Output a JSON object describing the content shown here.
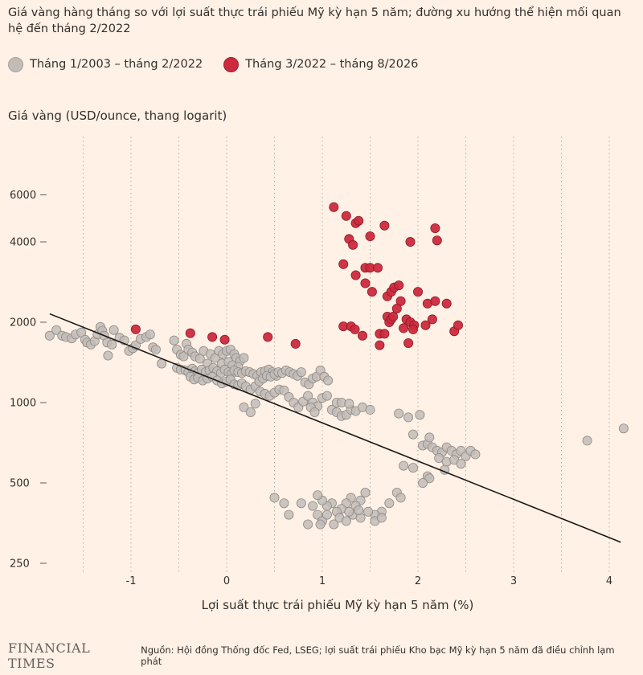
{
  "title": "Giá vàng hàng tháng so với lợi suất thực trái phiếu Mỹ kỳ hạn 5 năm; đường xu hướng thể hiện mối quan hệ đến tháng 2/2022",
  "legend": [
    {
      "label": "Tháng 1/2003 – tháng 2/2022",
      "color": "#c2bcb8"
    },
    {
      "label": "Tháng 3/2022 – tháng 8/2026",
      "color": "#cc2a3d"
    }
  ],
  "footer": {
    "brand": "FINANCIAL TIMES",
    "source": "Nguồn: Hội đồng Thống đốc Fed, LSEG; lợi suất trái phiếu Kho bạc Mỹ kỳ hạn 5 năm đã điều chỉnh lạm phát"
  },
  "chart_data": {
    "type": "scatter",
    "title": "Giá vàng hàng tháng so với lợi suất thực trái phiếu Mỹ kỳ hạn 5 năm; đường xu hướng thể hiện mối quan hệ đến tháng 2/2022",
    "xlabel": "Lợi suất thực trái phiếu Mỹ kỳ hạn 5 năm (%)",
    "ylabel": "Giá vàng (USD/ounce, thang logarit)",
    "x_ticks": [
      -1,
      0,
      1,
      2,
      3,
      4
    ],
    "x_tick_labels": [
      "-1",
      "0",
      "1",
      "2",
      "3",
      "4"
    ],
    "y_ticks": [
      250,
      500,
      1000,
      2000,
      4000,
      6000
    ],
    "y_tick_labels": [
      "250",
      "500",
      "1000",
      "2000",
      "4000",
      "6000"
    ],
    "y_scale": "log",
    "xlim": [
      -1.9,
      4.25
    ],
    "ylim": [
      240,
      9000
    ],
    "grid": "vertical dotted",
    "legend_position": "top-left",
    "trendline": {
      "x": [
        -1.85,
        4.12
      ],
      "y": [
        2150,
        300
      ]
    },
    "series": [
      {
        "name": "Tháng 1/2003 – tháng 2/2022",
        "color": "#c2bcb8",
        "points": [
          [
            -1.85,
            1780
          ],
          [
            -1.78,
            1870
          ],
          [
            -1.72,
            1780
          ],
          [
            -1.68,
            1760
          ],
          [
            -1.62,
            1740
          ],
          [
            -1.58,
            1800
          ],
          [
            -1.52,
            1830
          ],
          [
            -1.48,
            1720
          ],
          [
            -1.46,
            1680
          ],
          [
            -1.42,
            1650
          ],
          [
            -1.38,
            1700
          ],
          [
            -1.35,
            1800
          ],
          [
            -1.32,
            1920
          ],
          [
            -1.3,
            1860
          ],
          [
            -1.28,
            1780
          ],
          [
            -1.25,
            1680
          ],
          [
            -1.24,
            1500
          ],
          [
            -1.2,
            1650
          ],
          [
            -1.18,
            1870
          ],
          [
            -1.12,
            1750
          ],
          [
            -1.07,
            1710
          ],
          [
            -1.02,
            1560
          ],
          [
            -0.98,
            1600
          ],
          [
            -0.95,
            1640
          ],
          [
            -0.9,
            1730
          ],
          [
            -0.84,
            1760
          ],
          [
            -0.8,
            1800
          ],
          [
            -0.77,
            1610
          ],
          [
            -0.74,
            1580
          ],
          [
            -0.68,
            1400
          ],
          [
            -0.55,
            1710
          ],
          [
            -0.52,
            1580
          ],
          [
            -0.48,
            1510
          ],
          [
            -0.45,
            1490
          ],
          [
            -0.42,
            1660
          ],
          [
            -0.4,
            1580
          ],
          [
            -0.36,
            1540
          ],
          [
            -0.33,
            1490
          ],
          [
            -0.28,
            1460
          ],
          [
            -0.24,
            1560
          ],
          [
            -0.2,
            1400
          ],
          [
            -0.17,
            1520
          ],
          [
            -0.12,
            1470
          ],
          [
            -0.08,
            1560
          ],
          [
            -0.04,
            1520
          ],
          [
            0.0,
            1560
          ],
          [
            0.04,
            1580
          ],
          [
            0.08,
            1520
          ],
          [
            0.1,
            1470
          ],
          [
            0.14,
            1430
          ],
          [
            0.18,
            1470
          ],
          [
            -0.05,
            1400
          ],
          [
            0.02,
            1420
          ],
          [
            0.06,
            1380
          ],
          [
            0.12,
            1360
          ],
          [
            -0.52,
            1350
          ],
          [
            -0.48,
            1330
          ],
          [
            -0.43,
            1320
          ],
          [
            -0.4,
            1300
          ],
          [
            -0.36,
            1340
          ],
          [
            -0.33,
            1310
          ],
          [
            -0.3,
            1290
          ],
          [
            -0.26,
            1330
          ],
          [
            -0.22,
            1300
          ],
          [
            -0.18,
            1320
          ],
          [
            -0.14,
            1350
          ],
          [
            -0.1,
            1310
          ],
          [
            -0.06,
            1290
          ],
          [
            -0.02,
            1330
          ],
          [
            0.02,
            1300
          ],
          [
            0.05,
            1280
          ],
          [
            0.08,
            1320
          ],
          [
            0.12,
            1300
          ],
          [
            0.16,
            1290
          ],
          [
            0.2,
            1310
          ],
          [
            0.24,
            1300
          ],
          [
            0.28,
            1280
          ],
          [
            0.32,
            1260
          ],
          [
            0.36,
            1300
          ],
          [
            0.4,
            1310
          ],
          [
            0.44,
            1330
          ],
          [
            0.48,
            1300
          ],
          [
            0.52,
            1260
          ],
          [
            -0.38,
            1250
          ],
          [
            -0.34,
            1220
          ],
          [
            -0.3,
            1240
          ],
          [
            -0.25,
            1210
          ],
          [
            -0.2,
            1230
          ],
          [
            -0.15,
            1250
          ],
          [
            -0.1,
            1210
          ],
          [
            -0.05,
            1180
          ],
          [
            0.0,
            1200
          ],
          [
            0.04,
            1220
          ],
          [
            0.08,
            1170
          ],
          [
            0.12,
            1160
          ],
          [
            0.16,
            1180
          ],
          [
            0.2,
            1150
          ],
          [
            0.25,
            1120
          ],
          [
            0.3,
            1150
          ],
          [
            0.34,
            1200
          ],
          [
            0.38,
            1230
          ],
          [
            0.42,
            1260
          ],
          [
            0.46,
            1250
          ],
          [
            0.5,
            1280
          ],
          [
            0.54,
            1300
          ],
          [
            0.58,
            1290
          ],
          [
            0.62,
            1320
          ],
          [
            0.66,
            1300
          ],
          [
            0.7,
            1280
          ],
          [
            0.74,
            1260
          ],
          [
            0.78,
            1300
          ],
          [
            0.82,
            1190
          ],
          [
            0.86,
            1170
          ],
          [
            0.9,
            1230
          ],
          [
            0.94,
            1250
          ],
          [
            0.98,
            1320
          ],
          [
            1.02,
            1250
          ],
          [
            1.06,
            1210
          ],
          [
            0.35,
            1100
          ],
          [
            0.4,
            1080
          ],
          [
            0.45,
            1060
          ],
          [
            0.5,
            1090
          ],
          [
            0.55,
            1120
          ],
          [
            0.6,
            1110
          ],
          [
            0.65,
            1050
          ],
          [
            0.7,
            1000
          ],
          [
            0.75,
            960
          ],
          [
            0.8,
            1010
          ],
          [
            0.85,
            1060
          ],
          [
            0.9,
            1000
          ],
          [
            0.95,
            970
          ],
          [
            1.0,
            1040
          ],
          [
            1.05,
            1060
          ],
          [
            1.1,
            940
          ],
          [
            1.15,
            920
          ],
          [
            1.2,
            890
          ],
          [
            1.25,
            900
          ],
          [
            1.3,
            940
          ],
          [
            1.35,
            930
          ],
          [
            0.18,
            960
          ],
          [
            0.25,
            920
          ],
          [
            0.3,
            990
          ],
          [
            1.15,
            1000
          ],
          [
            1.2,
            1000
          ],
          [
            1.28,
            990
          ],
          [
            1.42,
            960
          ],
          [
            1.5,
            940
          ],
          [
            0.88,
            960
          ],
          [
            0.92,
            920
          ],
          [
            1.8,
            910
          ],
          [
            1.9,
            880
          ],
          [
            2.02,
            900
          ],
          [
            1.95,
            760
          ],
          [
            2.05,
            690
          ],
          [
            2.1,
            700
          ],
          [
            2.15,
            680
          ],
          [
            2.2,
            660
          ],
          [
            2.25,
            650
          ],
          [
            2.3,
            680
          ],
          [
            2.35,
            660
          ],
          [
            2.4,
            640
          ],
          [
            2.45,
            660
          ],
          [
            2.5,
            630
          ],
          [
            2.55,
            660
          ],
          [
            2.6,
            640
          ],
          [
            2.22,
            620
          ],
          [
            2.3,
            600
          ],
          [
            2.38,
            610
          ],
          [
            2.45,
            590
          ],
          [
            2.12,
            740
          ],
          [
            2.28,
            560
          ],
          [
            2.1,
            530
          ],
          [
            2.12,
            520
          ],
          [
            2.05,
            500
          ],
          [
            1.85,
            580
          ],
          [
            1.95,
            570
          ],
          [
            1.78,
            460
          ],
          [
            1.82,
            440
          ],
          [
            1.7,
            420
          ],
          [
            1.62,
            390
          ],
          [
            1.55,
            380
          ],
          [
            1.45,
            460
          ],
          [
            1.4,
            430
          ],
          [
            1.35,
            410
          ],
          [
            1.3,
            440
          ],
          [
            1.25,
            420
          ],
          [
            1.2,
            400
          ],
          [
            1.15,
            390
          ],
          [
            1.1,
            420
          ],
          [
            1.05,
            410
          ],
          [
            1.0,
            430
          ],
          [
            0.95,
            450
          ],
          [
            0.9,
            410
          ],
          [
            0.95,
            380
          ],
          [
            1.0,
            360
          ],
          [
            1.05,
            380
          ],
          [
            1.12,
            350
          ],
          [
            1.18,
            370
          ],
          [
            1.25,
            360
          ],
          [
            1.32,
            380
          ],
          [
            1.4,
            370
          ],
          [
            1.48,
            390
          ],
          [
            1.55,
            360
          ],
          [
            1.62,
            370
          ],
          [
            0.78,
            420
          ],
          [
            0.6,
            420
          ],
          [
            0.5,
            440
          ],
          [
            0.65,
            380
          ],
          [
            0.85,
            350
          ],
          [
            0.98,
            350
          ],
          [
            1.38,
            395
          ],
          [
            1.28,
            390
          ],
          [
            3.77,
            720
          ],
          [
            4.15,
            800
          ]
        ]
      },
      {
        "name": "Tháng 3/2022 – tháng 8/2026",
        "color": "#cc2a3d",
        "points": [
          [
            -0.95,
            1880
          ],
          [
            -0.38,
            1820
          ],
          [
            -0.15,
            1760
          ],
          [
            -0.02,
            1720
          ],
          [
            0.43,
            1760
          ],
          [
            0.72,
            1660
          ],
          [
            1.12,
            5400
          ],
          [
            1.25,
            5000
          ],
          [
            1.35,
            4700
          ],
          [
            1.38,
            4800
          ],
          [
            1.28,
            4100
          ],
          [
            1.32,
            3900
          ],
          [
            1.5,
            4200
          ],
          [
            1.65,
            4600
          ],
          [
            1.22,
            3300
          ],
          [
            1.35,
            3000
          ],
          [
            1.45,
            3200
          ],
          [
            1.5,
            3200
          ],
          [
            1.58,
            3200
          ],
          [
            1.45,
            2800
          ],
          [
            1.52,
            2600
          ],
          [
            1.68,
            2500
          ],
          [
            1.72,
            2600
          ],
          [
            1.75,
            2700
          ],
          [
            1.8,
            2750
          ],
          [
            1.82,
            2400
          ],
          [
            1.78,
            2250
          ],
          [
            1.68,
            2100
          ],
          [
            1.7,
            2000
          ],
          [
            1.72,
            2050
          ],
          [
            1.74,
            2100
          ],
          [
            1.88,
            2050
          ],
          [
            1.92,
            2000
          ],
          [
            1.96,
            1950
          ],
          [
            2.0,
            2600
          ],
          [
            2.08,
            1950
          ],
          [
            2.1,
            2350
          ],
          [
            2.18,
            2400
          ],
          [
            2.15,
            2050
          ],
          [
            2.3,
            2350
          ],
          [
            2.38,
            1850
          ],
          [
            2.42,
            1950
          ],
          [
            1.92,
            4000
          ],
          [
            2.18,
            4500
          ],
          [
            2.2,
            4050
          ],
          [
            1.22,
            1930
          ],
          [
            1.3,
            1930
          ],
          [
            1.34,
            1880
          ],
          [
            1.42,
            1780
          ],
          [
            1.6,
            1810
          ],
          [
            1.65,
            1810
          ],
          [
            1.6,
            1640
          ],
          [
            1.9,
            1670
          ],
          [
            1.85,
            1900
          ],
          [
            1.95,
            1880
          ]
        ]
      }
    ]
  }
}
